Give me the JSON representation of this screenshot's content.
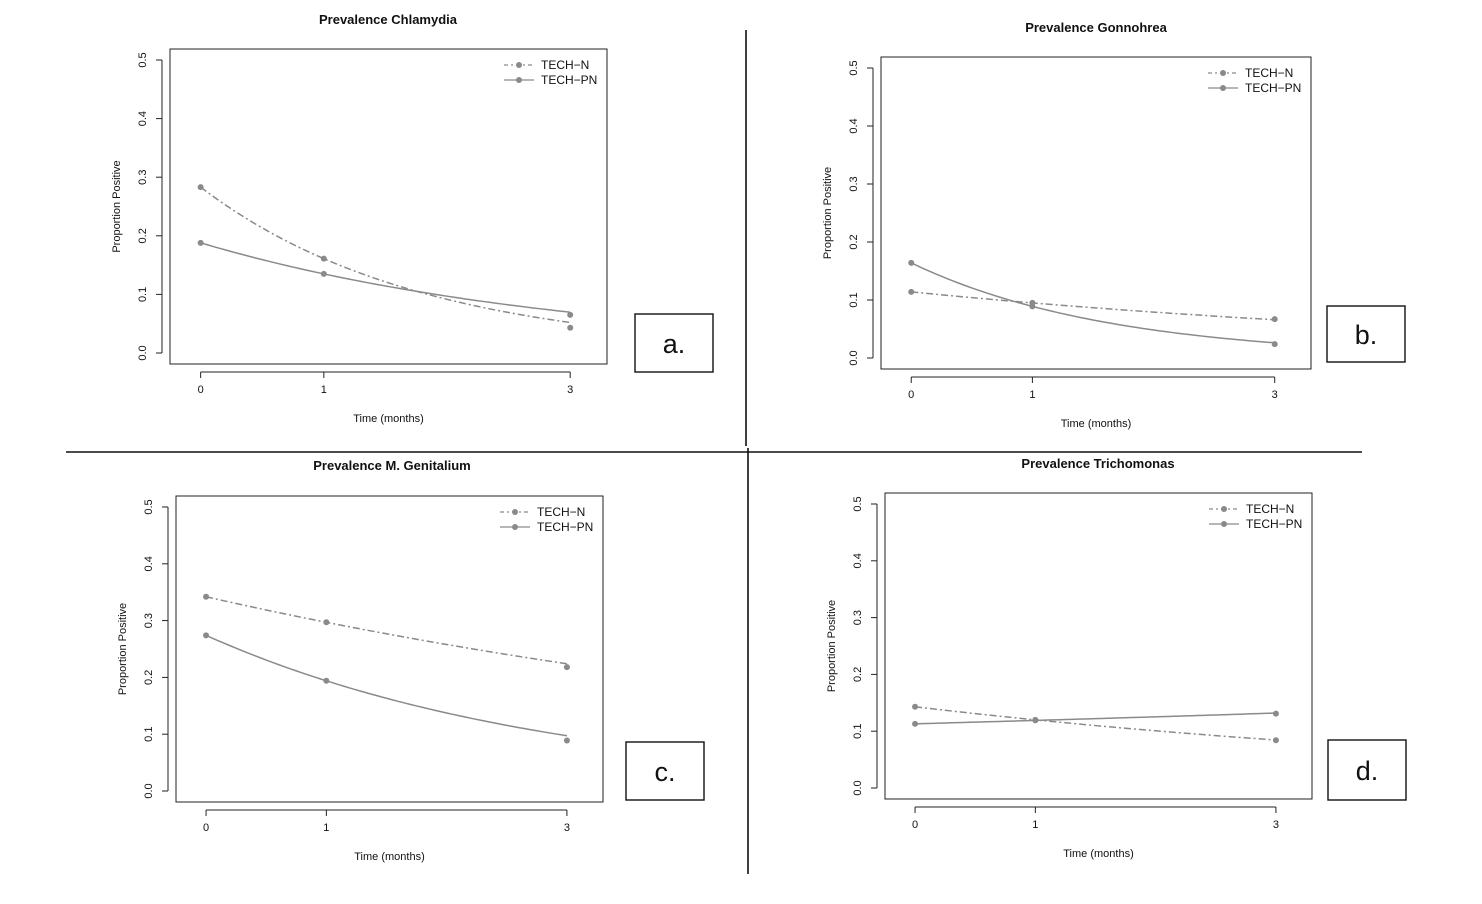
{
  "colors": {
    "line": "#8a8a8a",
    "axis": "#222222",
    "divider": "#111111",
    "background": "#ffffff"
  },
  "chart_data": [
    {
      "type": "line",
      "title": "Prevalence Chlamydia",
      "xlabel": "Time (months)",
      "ylabel": "Proportion Positive",
      "panel_label": "a.",
      "x": [
        0,
        1,
        3
      ],
      "xlim": [
        -0.2,
        3.25
      ],
      "ylim": [
        0.0,
        0.5
      ],
      "x_ticks": [
        "0",
        "1",
        "3"
      ],
      "y_ticks": [
        "0.0",
        "0.1",
        "0.2",
        "0.3",
        "0.4",
        "0.5"
      ],
      "legend_position": "top-right",
      "grid": false,
      "series": [
        {
          "name": "TECH−N",
          "style": "dash-dot",
          "values": [
            0.283,
            0.161,
            0.043
          ]
        },
        {
          "name": "TECH−PN",
          "style": "solid",
          "values": [
            0.188,
            0.135,
            0.065
          ]
        }
      ]
    },
    {
      "type": "line",
      "title": "Prevalence Gonnohrea",
      "xlabel": "Time (months)",
      "ylabel": "Proportion Positive",
      "panel_label": "b.",
      "x": [
        0,
        1,
        3
      ],
      "xlim": [
        -0.2,
        3.25
      ],
      "ylim": [
        0.0,
        0.5
      ],
      "x_ticks": [
        "0",
        "1",
        "3"
      ],
      "y_ticks": [
        "0.0",
        "0.1",
        "0.2",
        "0.3",
        "0.4",
        "0.5"
      ],
      "legend_position": "top-right",
      "grid": false,
      "series": [
        {
          "name": "TECH−N",
          "style": "dash-dot",
          "values": [
            0.114,
            0.095,
            0.067
          ]
        },
        {
          "name": "TECH−PN",
          "style": "solid",
          "values": [
            0.164,
            0.089,
            0.024
          ]
        }
      ]
    },
    {
      "type": "line",
      "title": "Prevalence M. Genitalium",
      "xlabel": "Time (months)",
      "ylabel": "Proportion Positive",
      "panel_label": "c.",
      "x": [
        0,
        1,
        3
      ],
      "xlim": [
        -0.2,
        3.25
      ],
      "ylim": [
        0.0,
        0.5
      ],
      "x_ticks": [
        "0",
        "1",
        "3"
      ],
      "y_ticks": [
        "0.0",
        "0.1",
        "0.2",
        "0.3",
        "0.4",
        "0.5"
      ],
      "legend_position": "top-right",
      "grid": false,
      "series": [
        {
          "name": "TECH−N",
          "style": "dash-dot",
          "values": [
            0.342,
            0.297,
            0.218
          ]
        },
        {
          "name": "TECH−PN",
          "style": "solid",
          "values": [
            0.274,
            0.194,
            0.089
          ]
        }
      ]
    },
    {
      "type": "line",
      "title": "Prevalence Trichomonas",
      "xlabel": "Time (months)",
      "ylabel": "Proportion Positive",
      "panel_label": "d.",
      "x": [
        0,
        1,
        3
      ],
      "xlim": [
        -0.2,
        3.25
      ],
      "ylim": [
        0.0,
        0.5
      ],
      "x_ticks": [
        "0",
        "1",
        "3"
      ],
      "y_ticks": [
        "0.0",
        "0.1",
        "0.2",
        "0.3",
        "0.4",
        "0.5"
      ],
      "legend_position": "top-right",
      "grid": false,
      "series": [
        {
          "name": "TECH−N",
          "style": "dash-dot",
          "values": [
            0.143,
            0.12,
            0.084
          ]
        },
        {
          "name": "TECH−PN",
          "style": "solid",
          "values": [
            0.113,
            0.119,
            0.131
          ]
        }
      ]
    }
  ]
}
